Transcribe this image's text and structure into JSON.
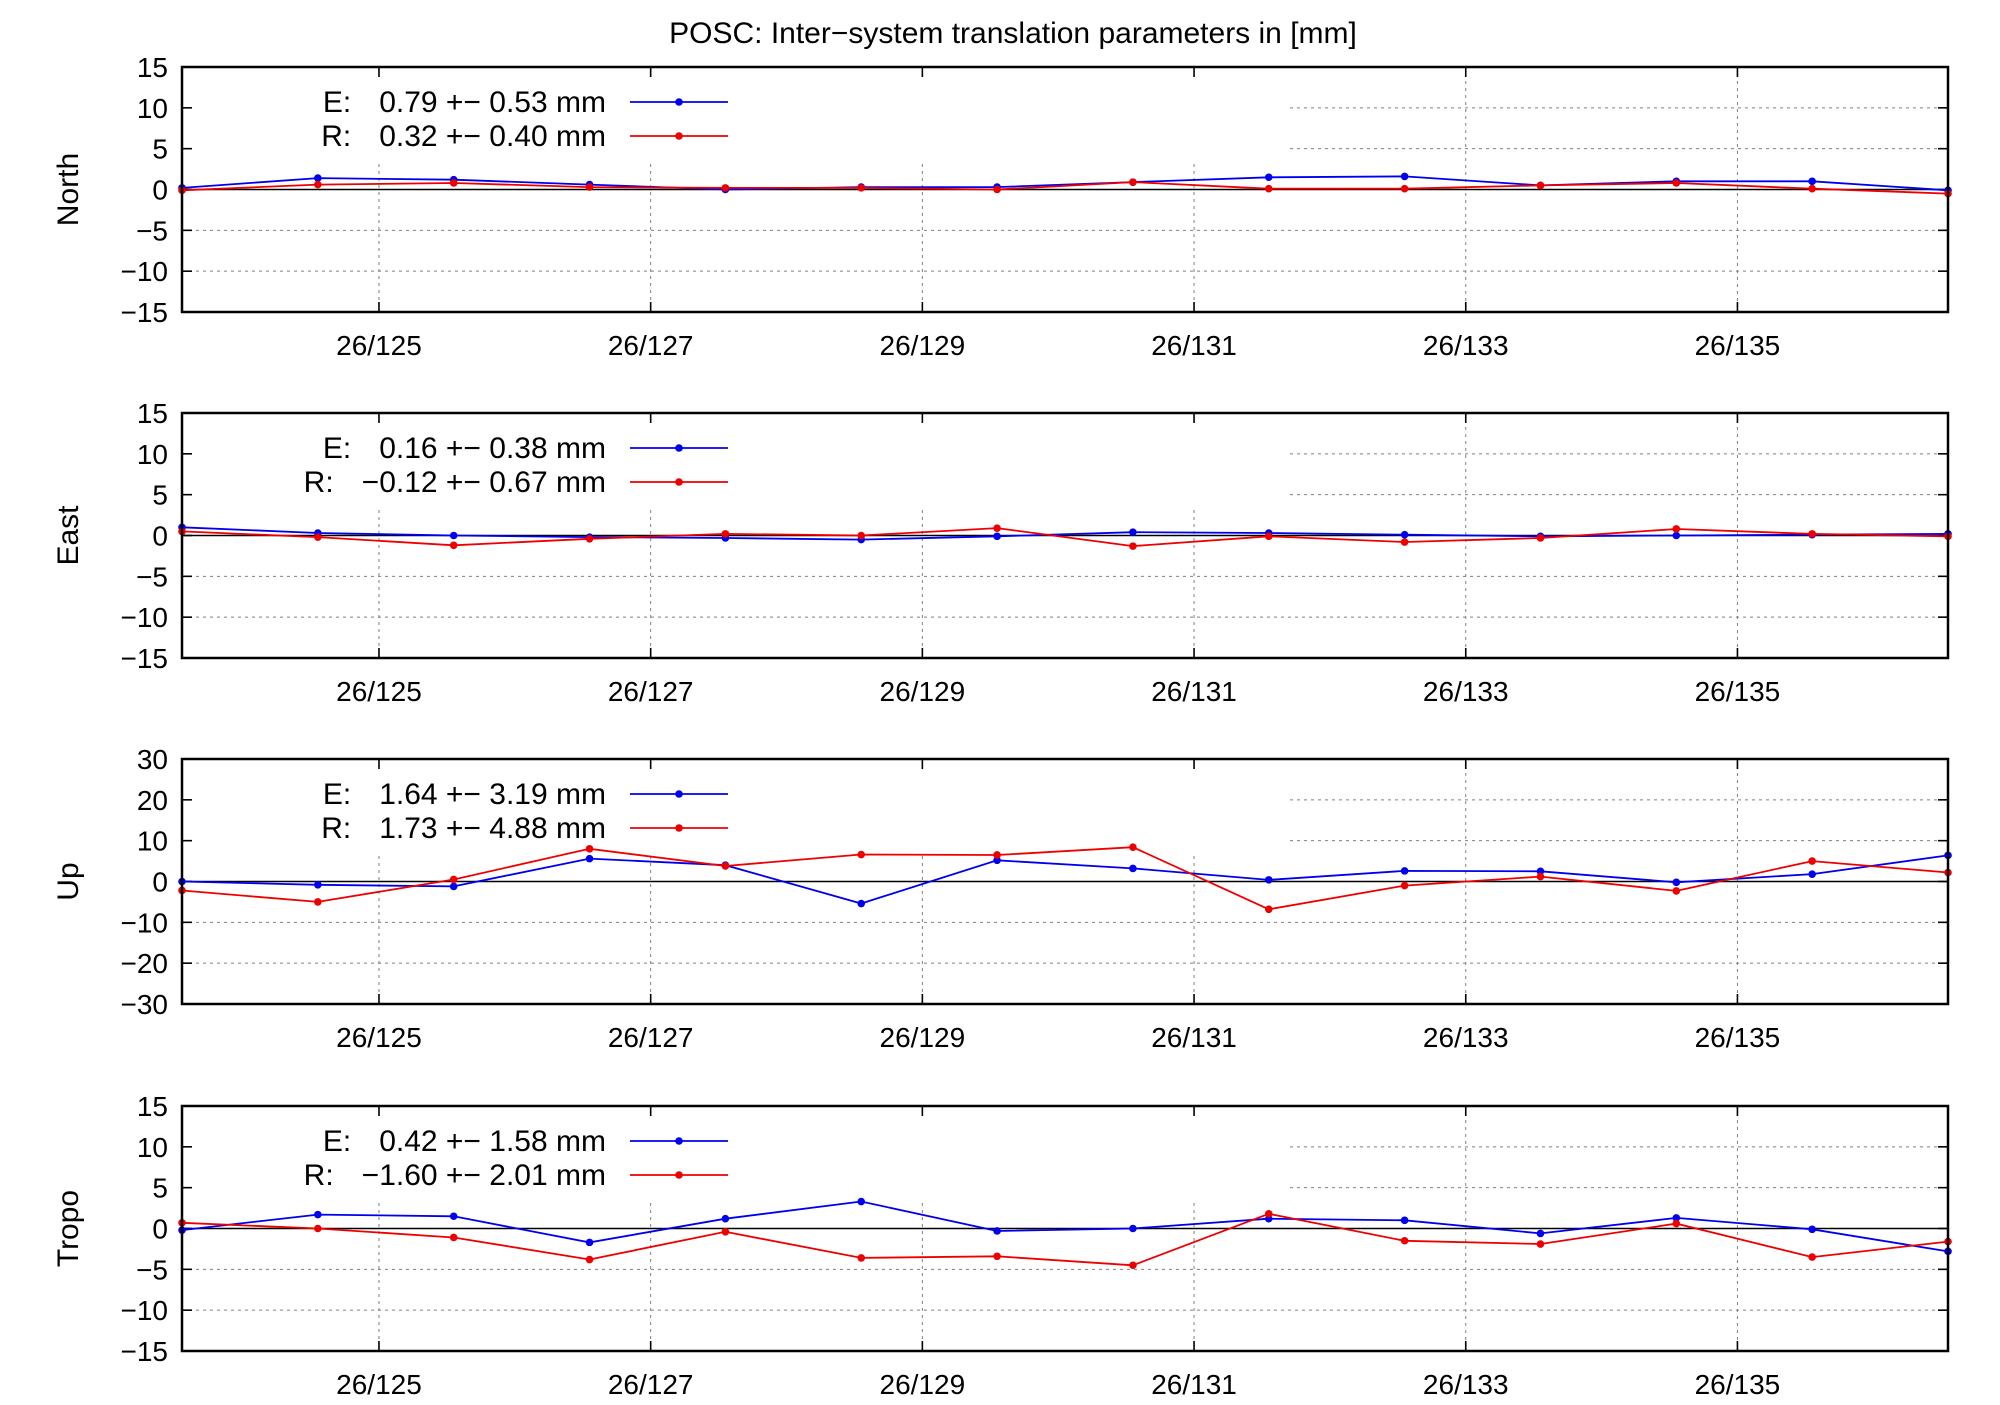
{
  "chart_data": {
    "type": "line",
    "title": "POSC: Inter−system translation parameters in [mm]",
    "x_ticks": [
      125,
      127,
      129,
      131,
      133,
      135
    ],
    "x_tick_labels": [
      "26/125",
      "26/127",
      "26/129",
      "26/131",
      "26/133",
      "26/135"
    ],
    "x_range": [
      123.55,
      136.55
    ],
    "x": [
      123.55,
      124.55,
      125.55,
      126.55,
      127.55,
      128.55,
      129.55,
      130.55,
      131.55,
      132.55,
      133.55,
      134.55,
      135.55,
      136.55
    ],
    "grid": true,
    "legend_position": "top-left",
    "panels": [
      {
        "ylabel": "North",
        "ylim": [
          -15,
          15
        ],
        "y_ticks": [
          15,
          10,
          5,
          0,
          -5,
          -10,
          -15
        ],
        "y_tick_labels": [
          "15",
          "10",
          "5",
          "0",
          "−5",
          "−10",
          "−15"
        ],
        "series": [
          {
            "name": "E:",
            "legend": "0.79 +− 0.53 mm",
            "color": "#0000ee",
            "values": [
              0.2,
              1.4,
              1.2,
              0.6,
              0.0,
              0.3,
              0.3,
              0.9,
              1.5,
              1.6,
              0.5,
              1.0,
              1.0,
              -0.1
            ]
          },
          {
            "name": "R:",
            "legend": "0.32 +− 0.40 mm",
            "color": "#ee0000",
            "values": [
              -0.1,
              0.6,
              0.8,
              0.3,
              0.2,
              0.2,
              0.0,
              0.9,
              0.1,
              0.1,
              0.5,
              0.8,
              0.1,
              -0.5
            ]
          }
        ]
      },
      {
        "ylabel": "East",
        "ylim": [
          -15,
          15
        ],
        "y_ticks": [
          15,
          10,
          5,
          0,
          -5,
          -10,
          -15
        ],
        "y_tick_labels": [
          "15",
          "10",
          "5",
          "0",
          "−5",
          "−10",
          "−15"
        ],
        "series": [
          {
            "name": "E:",
            "legend": "0.16 +− 0.38 mm",
            "color": "#0000ee",
            "values": [
              1.0,
              0.3,
              0.0,
              -0.2,
              -0.3,
              -0.5,
              -0.1,
              0.4,
              0.3,
              0.1,
              -0.1,
              0.0,
              0.1,
              0.2
            ]
          },
          {
            "name": "R:",
            "legend": "−0.12 +− 0.67 mm",
            "color": "#ee0000",
            "values": [
              0.5,
              -0.2,
              -1.2,
              -0.4,
              0.2,
              0.0,
              0.9,
              -1.3,
              -0.1,
              -0.8,
              -0.3,
              0.8,
              0.2,
              -0.1
            ]
          }
        ]
      },
      {
        "ylabel": "Up",
        "ylim": [
          -30,
          30
        ],
        "y_ticks": [
          30,
          20,
          10,
          0,
          -10,
          -20,
          -30
        ],
        "y_tick_labels": [
          "30",
          "20",
          "10",
          "0",
          "−10",
          "−20",
          "−30"
        ],
        "series": [
          {
            "name": "E:",
            "legend": "1.64 +− 3.19 mm",
            "color": "#0000ee",
            "values": [
              0.0,
              -0.8,
              -1.2,
              5.6,
              4.0,
              -5.4,
              5.2,
              3.2,
              0.4,
              2.6,
              2.5,
              -0.2,
              1.8,
              6.4
            ]
          },
          {
            "name": "R:",
            "legend": "1.73 +− 4.88 mm",
            "color": "#ee0000",
            "values": [
              -2.2,
              -5.0,
              0.5,
              8.0,
              3.8,
              6.6,
              6.5,
              8.4,
              -6.8,
              -1.0,
              1.2,
              -2.3,
              5.0,
              2.2
            ]
          }
        ]
      },
      {
        "ylabel": "Tropo",
        "ylim": [
          -15,
          15
        ],
        "y_ticks": [
          15,
          10,
          5,
          0,
          -5,
          -10,
          -15
        ],
        "y_tick_labels": [
          "15",
          "10",
          "5",
          "0",
          "−5",
          "−10",
          "−15"
        ],
        "series": [
          {
            "name": "E:",
            "legend": "0.42 +− 1.58 mm",
            "color": "#0000ee",
            "values": [
              -0.2,
              1.7,
              1.5,
              -1.7,
              1.2,
              3.3,
              -0.3,
              0.0,
              1.2,
              1.0,
              -0.6,
              1.3,
              -0.1,
              -2.8
            ]
          },
          {
            "name": "R:",
            "legend": "−1.60 +− 2.01 mm",
            "color": "#ee0000",
            "values": [
              0.7,
              0.0,
              -1.1,
              -3.8,
              -0.4,
              -3.6,
              -3.4,
              -4.5,
              1.8,
              -1.5,
              -1.9,
              0.6,
              -3.5,
              -1.6
            ]
          }
        ]
      }
    ]
  }
}
